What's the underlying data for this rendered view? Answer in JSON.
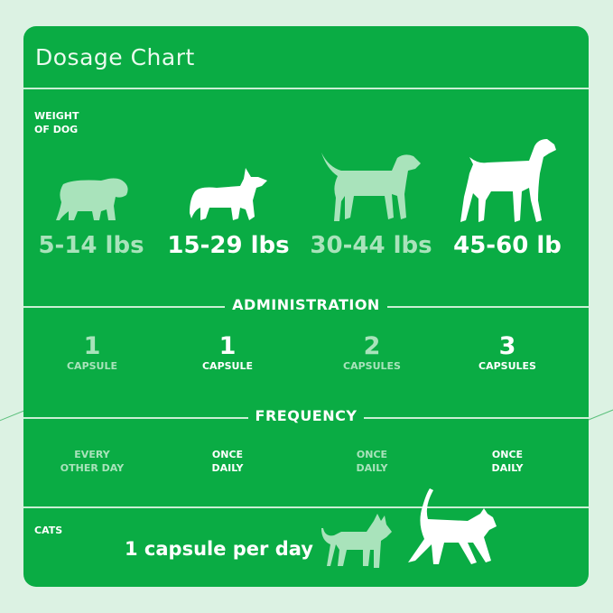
{
  "colors": {
    "background": "#dcf2e3",
    "card": "#0aac44",
    "highlight": "#ffffff",
    "muted": "#a9e3bb"
  },
  "title": "Dosage Chart",
  "weight_label": [
    "WEIGHT",
    "OF DOG"
  ],
  "weights": [
    {
      "label": "5-14 lbs",
      "icon": "bulldog-icon",
      "muted": true
    },
    {
      "label": "15-29 lbs",
      "icon": "corgi-icon",
      "muted": false
    },
    {
      "label": "30-44 lbs",
      "icon": "labrador-icon",
      "muted": true
    },
    {
      "label": "45-60 lb",
      "icon": "pointer-dog-icon",
      "muted": false
    }
  ],
  "administration": {
    "heading": "ADMINISTRATION",
    "items": [
      {
        "count": "1",
        "unit": "CAPSULE"
      },
      {
        "count": "1",
        "unit": "CAPSULE"
      },
      {
        "count": "2",
        "unit": "CAPSULES"
      },
      {
        "count": "3",
        "unit": "CAPSULES"
      }
    ]
  },
  "frequency": {
    "heading": "FREQUENCY",
    "items": [
      [
        "EVERY",
        "OTHER DAY"
      ],
      [
        "ONCE",
        "DAILY"
      ],
      [
        "ONCE",
        "DAILY"
      ],
      [
        "ONCE",
        "DAILY"
      ]
    ]
  },
  "cats": {
    "label": "CATS",
    "dose": "1 capsule per day"
  }
}
